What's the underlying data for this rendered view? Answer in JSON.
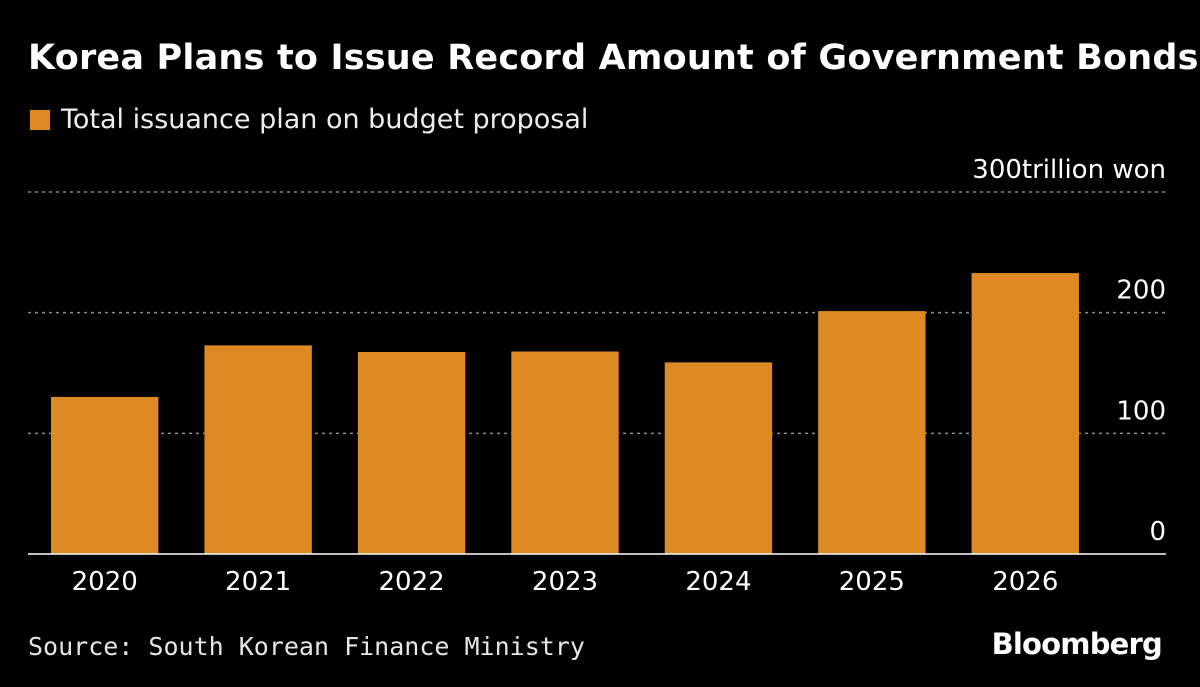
{
  "header": {
    "title": "Korea Plans to Issue Record Amount of Government Bonds"
  },
  "legend": {
    "label": "Total issuance plan on budget proposal"
  },
  "footer": {
    "source": "Source: South Korean Finance Ministry",
    "brand": "Bloomberg"
  },
  "colors": {
    "bar": "#DD8A25",
    "background": "#000000",
    "grid": "#8a8a8a",
    "text": "#ffffff"
  },
  "chart_data": {
    "type": "bar",
    "title": "Korea Plans to Issue Record Amount of Government Bonds",
    "categories": [
      "2020",
      "2021",
      "2022",
      "2023",
      "2024",
      "2025",
      "2026"
    ],
    "series": [
      {
        "name": "Total issuance plan on budget proposal",
        "values": [
          130.2,
          172.9,
          167.4,
          167.8,
          158.8,
          201.3,
          232.8
        ]
      }
    ],
    "ylim": [
      0,
      300
    ],
    "yticks": [
      0,
      100,
      200,
      300
    ],
    "ytick_labels": [
      "0",
      "100",
      "200",
      "300trillion won"
    ],
    "xlabel": "",
    "ylabel": "trillion won",
    "grid": true,
    "legend_position": "top-left"
  }
}
